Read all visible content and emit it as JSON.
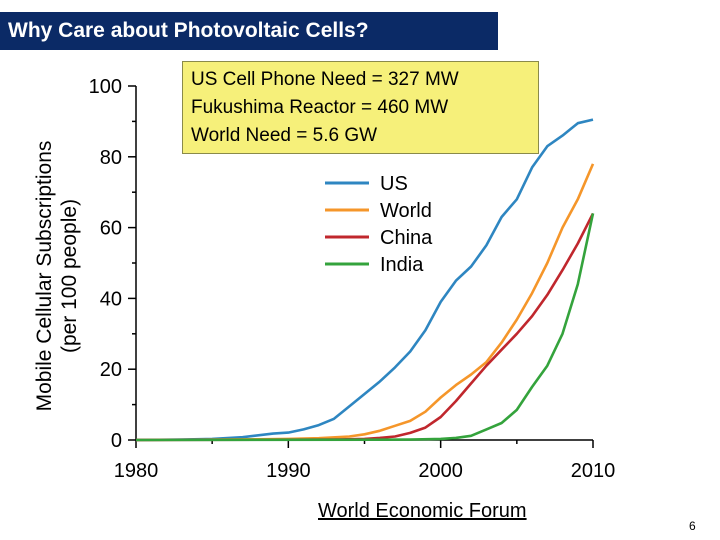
{
  "slide": {
    "title": "Why Care about Photovoltaic Cells?",
    "info_lines": [
      "US Cell Phone Need = 327 MW",
      "Fukushima Reactor = 460 MW",
      "World Need = 5.6 GW"
    ],
    "source": "World Economic Forum",
    "page_number": "6",
    "title_bg": "#0b2a66",
    "info_bg": "#f6f07a"
  },
  "chart_data": {
    "type": "line",
    "ylabel_line1": "Mobile Cellular Subscriptions",
    "ylabel_line2": "(per 100 people)",
    "xlim": [
      1980,
      2010
    ],
    "ylim": [
      0,
      100
    ],
    "xticks": [
      1980,
      1990,
      2000,
      2010
    ],
    "yticks": [
      0,
      20,
      40,
      60,
      80,
      100
    ],
    "grid": false,
    "legend_position": "center-right",
    "series": [
      {
        "name": "US",
        "color": "#2e86c1",
        "points": [
          [
            1980,
            0
          ],
          [
            1983,
            0.1
          ],
          [
            1985,
            0.3
          ],
          [
            1987,
            0.8
          ],
          [
            1989,
            1.8
          ],
          [
            1990,
            2.1
          ],
          [
            1991,
            3
          ],
          [
            1992,
            4.2
          ],
          [
            1993,
            6
          ],
          [
            1994,
            9.5
          ],
          [
            1995,
            13
          ],
          [
            1996,
            16.5
          ],
          [
            1997,
            20.5
          ],
          [
            1998,
            25
          ],
          [
            1999,
            31
          ],
          [
            2000,
            39
          ],
          [
            2001,
            45
          ],
          [
            2002,
            49
          ],
          [
            2003,
            55
          ],
          [
            2004,
            63
          ],
          [
            2005,
            68
          ],
          [
            2006,
            77
          ],
          [
            2007,
            83
          ],
          [
            2008,
            86
          ],
          [
            2009,
            89.5
          ],
          [
            2010,
            90.5
          ]
        ]
      },
      {
        "name": "World",
        "color": "#f5962a",
        "points": [
          [
            1980,
            0
          ],
          [
            1988,
            0.2
          ],
          [
            1990,
            0.3
          ],
          [
            1992,
            0.5
          ],
          [
            1994,
            1
          ],
          [
            1995,
            1.6
          ],
          [
            1996,
            2.6
          ],
          [
            1997,
            4
          ],
          [
            1998,
            5.4
          ],
          [
            1999,
            8
          ],
          [
            2000,
            12
          ],
          [
            2001,
            15.5
          ],
          [
            2002,
            18.5
          ],
          [
            2003,
            22
          ],
          [
            2004,
            27.5
          ],
          [
            2005,
            34
          ],
          [
            2006,
            41.5
          ],
          [
            2007,
            50
          ],
          [
            2008,
            60
          ],
          [
            2009,
            68
          ],
          [
            2010,
            78
          ]
        ]
      },
      {
        "name": "China",
        "color": "#c0272d",
        "points": [
          [
            1980,
            0
          ],
          [
            1993,
            0.1
          ],
          [
            1995,
            0.3
          ],
          [
            1996,
            0.6
          ],
          [
            1997,
            1
          ],
          [
            1998,
            2
          ],
          [
            1999,
            3.5
          ],
          [
            2000,
            6.5
          ],
          [
            2001,
            11
          ],
          [
            2002,
            16
          ],
          [
            2003,
            21
          ],
          [
            2004,
            25.5
          ],
          [
            2005,
            30
          ],
          [
            2006,
            35
          ],
          [
            2007,
            41
          ],
          [
            2008,
            48
          ],
          [
            2009,
            55.5
          ],
          [
            2010,
            64
          ]
        ]
      },
      {
        "name": "India",
        "color": "#34a33c",
        "points": [
          [
            1980,
            0
          ],
          [
            1998,
            0.1
          ],
          [
            2000,
            0.3
          ],
          [
            2001,
            0.6
          ],
          [
            2002,
            1.2
          ],
          [
            2003,
            3
          ],
          [
            2004,
            4.8
          ],
          [
            2005,
            8.5
          ],
          [
            2006,
            15
          ],
          [
            2007,
            21
          ],
          [
            2008,
            30
          ],
          [
            2009,
            44
          ],
          [
            2010,
            64
          ]
        ]
      }
    ]
  }
}
